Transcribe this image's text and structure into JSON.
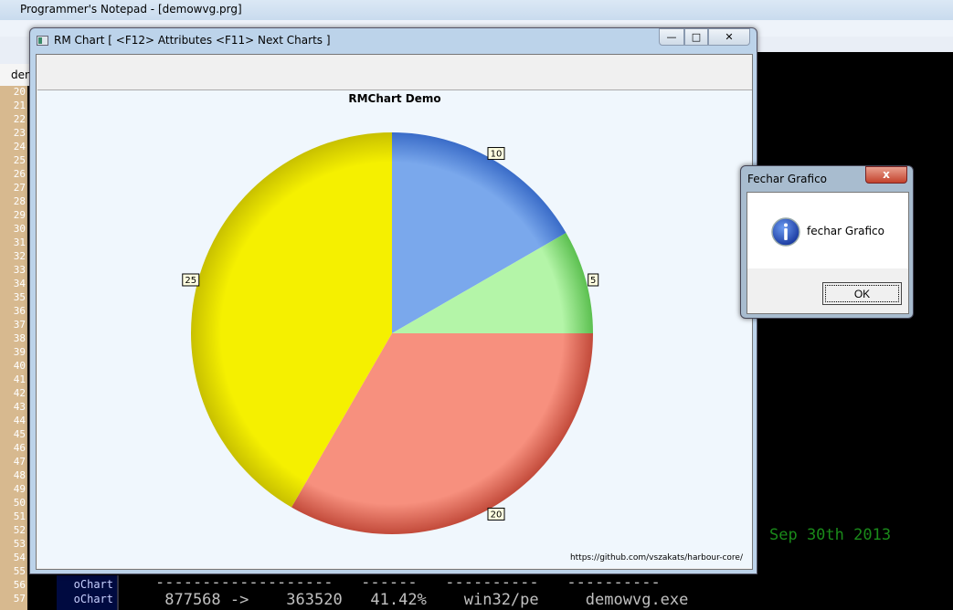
{
  "notepad": {
    "title": "Programmer's Notepad - [demowvg.prg]",
    "tab": "dem",
    "line_numbers": [
      "20",
      "21",
      "22",
      "23",
      "24",
      "25",
      "26",
      "27",
      "28",
      "29",
      "30",
      "31",
      "32",
      "33",
      "34",
      "35",
      "36",
      "37",
      "38",
      "39",
      "40",
      "41",
      "42",
      "43",
      "44",
      "45",
      "46",
      "47",
      "48",
      "49",
      "50",
      "51",
      "52",
      "53",
      "54",
      "55",
      "56",
      "57"
    ]
  },
  "console": {
    "date": "Sep 30th 2013",
    "labels": [
      "oChart",
      "oChart"
    ],
    "dashes": "-------------------   ------   ----------   ----------",
    "stats": " 877568 ->    363520   41.42%    win32/pe     demowvg.exe"
  },
  "chart_window": {
    "title": "RM Chart [ <F12> Attributes  <F11> Next Charts ]",
    "buttons": {
      "minimize": "minimize",
      "maximize": "maximize",
      "close": "close"
    },
    "credit": "https://github.com/vszakats/harbour-core/"
  },
  "chart_data": {
    "type": "pie",
    "title": "RMChart Demo",
    "values": [
      10,
      5,
      20,
      25
    ],
    "colors": [
      "#7aa8ec",
      "#b4f5a8",
      "#f7907e",
      "#f5f000"
    ],
    "edge_colors": [
      "#3a6cc8",
      "#5cc050",
      "#c24a3a",
      "#c8c000"
    ],
    "start": "top",
    "direction": "clockwise",
    "data_labels": [
      "10",
      "5",
      "20",
      "25"
    ]
  },
  "dialog": {
    "title": "Fechar Grafico",
    "message": "fechar Grafico",
    "ok_label": "OK",
    "close_glyph": "x",
    "icon": "info-icon"
  }
}
